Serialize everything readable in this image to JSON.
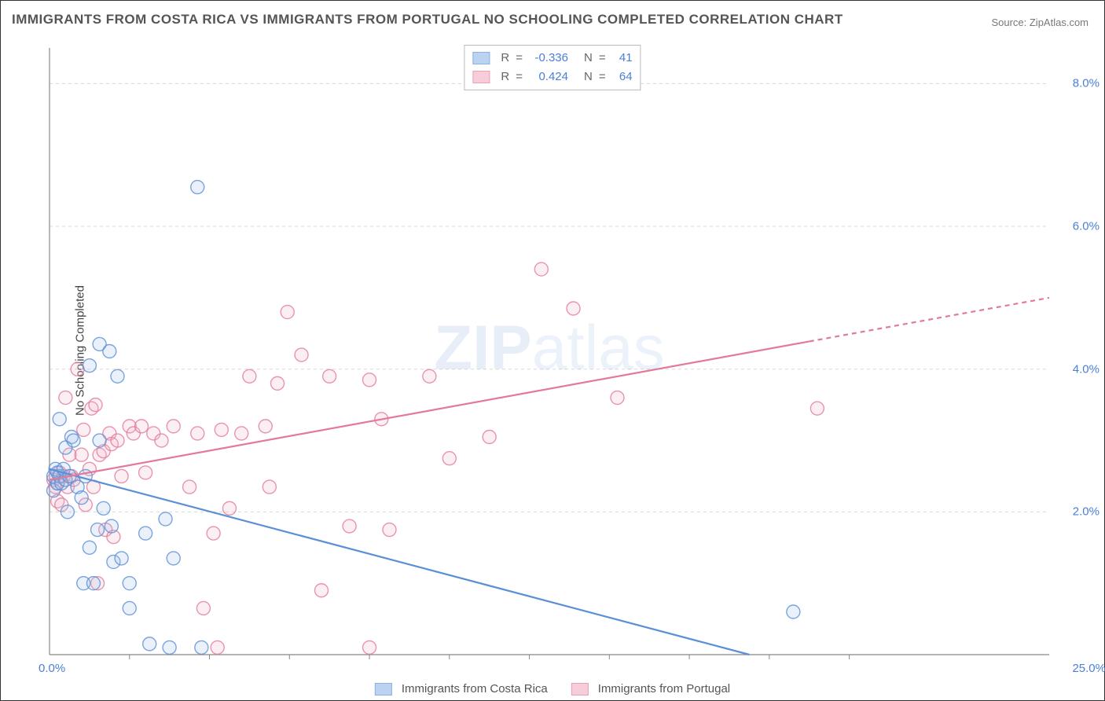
{
  "title": "IMMIGRANTS FROM COSTA RICA VS IMMIGRANTS FROM PORTUGAL NO SCHOOLING COMPLETED CORRELATION CHART",
  "source": "Source: ZipAtlas.com",
  "y_axis_label": "No Schooling Completed",
  "watermark_bold": "ZIP",
  "watermark_thin": "atlas",
  "chart": {
    "type": "scatter",
    "background_color": "#ffffff",
    "grid_color": "#d8d8d8",
    "grid_dash": "4,4",
    "axis_color": "#888888",
    "xlim": [
      0,
      25
    ],
    "ylim": [
      0,
      8.5
    ],
    "x_tick_label_start": "0.0%",
    "x_tick_label_end": "25.0%",
    "x_minor_ticks": [
      2,
      4,
      6,
      8,
      10,
      12,
      14,
      16,
      18,
      20
    ],
    "y_ticks": [
      {
        "v": 2.0,
        "label": "2.0%"
      },
      {
        "v": 4.0,
        "label": "4.0%"
      },
      {
        "v": 6.0,
        "label": "6.0%"
      },
      {
        "v": 8.0,
        "label": "8.0%"
      }
    ],
    "marker_radius": 8.5,
    "marker_stroke_width": 1.4,
    "marker_fill_opacity": 0.22,
    "trend_line_width": 2.2,
    "series": [
      {
        "id": "costa_rica",
        "label": "Immigrants from Costa Rica",
        "color_stroke": "#5b8fd6",
        "color_fill": "#9fc1ea",
        "R": "-0.336",
        "N": "41",
        "trend": {
          "x1": 0.0,
          "y1": 2.6,
          "x2": 17.5,
          "y2": 0.0,
          "dash_from_x": 25.0
        },
        "points": [
          [
            0.1,
            2.5
          ],
          [
            0.1,
            2.3
          ],
          [
            0.15,
            2.6
          ],
          [
            0.2,
            2.4
          ],
          [
            0.2,
            2.55
          ],
          [
            0.25,
            3.3
          ],
          [
            0.25,
            2.5
          ],
          [
            0.3,
            2.4
          ],
          [
            0.35,
            2.6
          ],
          [
            0.4,
            2.9
          ],
          [
            0.4,
            2.45
          ],
          [
            0.45,
            2.0
          ],
          [
            0.5,
            2.5
          ],
          [
            0.55,
            3.05
          ],
          [
            0.6,
            3.0
          ],
          [
            0.7,
            2.35
          ],
          [
            0.8,
            2.2
          ],
          [
            0.85,
            1.0
          ],
          [
            0.9,
            2.5
          ],
          [
            1.0,
            1.5
          ],
          [
            1.0,
            4.05
          ],
          [
            1.1,
            1.0
          ],
          [
            1.2,
            1.75
          ],
          [
            1.25,
            4.35
          ],
          [
            1.25,
            3.0
          ],
          [
            1.35,
            2.05
          ],
          [
            1.5,
            4.25
          ],
          [
            1.55,
            1.8
          ],
          [
            1.6,
            1.3
          ],
          [
            1.7,
            3.9
          ],
          [
            1.8,
            1.35
          ],
          [
            2.0,
            1.0
          ],
          [
            2.0,
            0.65
          ],
          [
            2.4,
            1.7
          ],
          [
            2.5,
            0.15
          ],
          [
            2.9,
            1.9
          ],
          [
            3.0,
            0.1
          ],
          [
            3.1,
            1.35
          ],
          [
            3.7,
            6.55
          ],
          [
            3.8,
            0.1
          ],
          [
            18.6,
            0.6
          ]
        ]
      },
      {
        "id": "portugal",
        "label": "Immigrants from Portugal",
        "color_stroke": "#e27a9a",
        "color_fill": "#f3b8c9",
        "R": "0.424",
        "N": "64",
        "trend": {
          "x1": 0.0,
          "y1": 2.45,
          "x2": 25.0,
          "y2": 5.0,
          "dash_from_x": 19.0
        },
        "points": [
          [
            0.1,
            2.45
          ],
          [
            0.15,
            2.35
          ],
          [
            0.2,
            2.15
          ],
          [
            0.2,
            2.4
          ],
          [
            0.25,
            2.55
          ],
          [
            0.3,
            2.1
          ],
          [
            0.35,
            2.5
          ],
          [
            0.4,
            3.6
          ],
          [
            0.45,
            2.35
          ],
          [
            0.5,
            2.8
          ],
          [
            0.55,
            2.5
          ],
          [
            0.6,
            2.45
          ],
          [
            0.7,
            4.0
          ],
          [
            0.8,
            2.8
          ],
          [
            0.85,
            3.15
          ],
          [
            0.9,
            2.1
          ],
          [
            1.0,
            2.6
          ],
          [
            1.05,
            3.45
          ],
          [
            1.1,
            2.35
          ],
          [
            1.15,
            3.5
          ],
          [
            1.2,
            1.0
          ],
          [
            1.25,
            2.8
          ],
          [
            1.35,
            2.85
          ],
          [
            1.4,
            1.75
          ],
          [
            1.5,
            3.1
          ],
          [
            1.55,
            2.95
          ],
          [
            1.6,
            1.65
          ],
          [
            1.7,
            3.0
          ],
          [
            1.8,
            2.5
          ],
          [
            2.0,
            3.2
          ],
          [
            2.1,
            3.1
          ],
          [
            2.3,
            3.2
          ],
          [
            2.4,
            2.55
          ],
          [
            2.6,
            3.1
          ],
          [
            2.8,
            3.0
          ],
          [
            3.1,
            3.2
          ],
          [
            3.5,
            2.35
          ],
          [
            3.7,
            3.1
          ],
          [
            3.85,
            0.65
          ],
          [
            4.1,
            1.7
          ],
          [
            4.2,
            0.1
          ],
          [
            4.3,
            3.15
          ],
          [
            4.5,
            2.05
          ],
          [
            4.8,
            3.1
          ],
          [
            5.0,
            3.9
          ],
          [
            5.4,
            3.2
          ],
          [
            5.5,
            2.35
          ],
          [
            5.7,
            3.8
          ],
          [
            5.95,
            4.8
          ],
          [
            6.3,
            4.2
          ],
          [
            6.8,
            0.9
          ],
          [
            7.0,
            3.9
          ],
          [
            7.5,
            1.8
          ],
          [
            8.0,
            0.1
          ],
          [
            8.0,
            3.85
          ],
          [
            8.3,
            3.3
          ],
          [
            8.5,
            1.75
          ],
          [
            9.5,
            3.9
          ],
          [
            10.0,
            2.75
          ],
          [
            11.0,
            3.05
          ],
          [
            12.3,
            5.4
          ],
          [
            13.1,
            4.85
          ],
          [
            14.2,
            3.6
          ],
          [
            19.2,
            3.45
          ]
        ]
      }
    ]
  },
  "stats_legend_title": "",
  "label_R": "R",
  "label_N": "N",
  "label_eq": "="
}
